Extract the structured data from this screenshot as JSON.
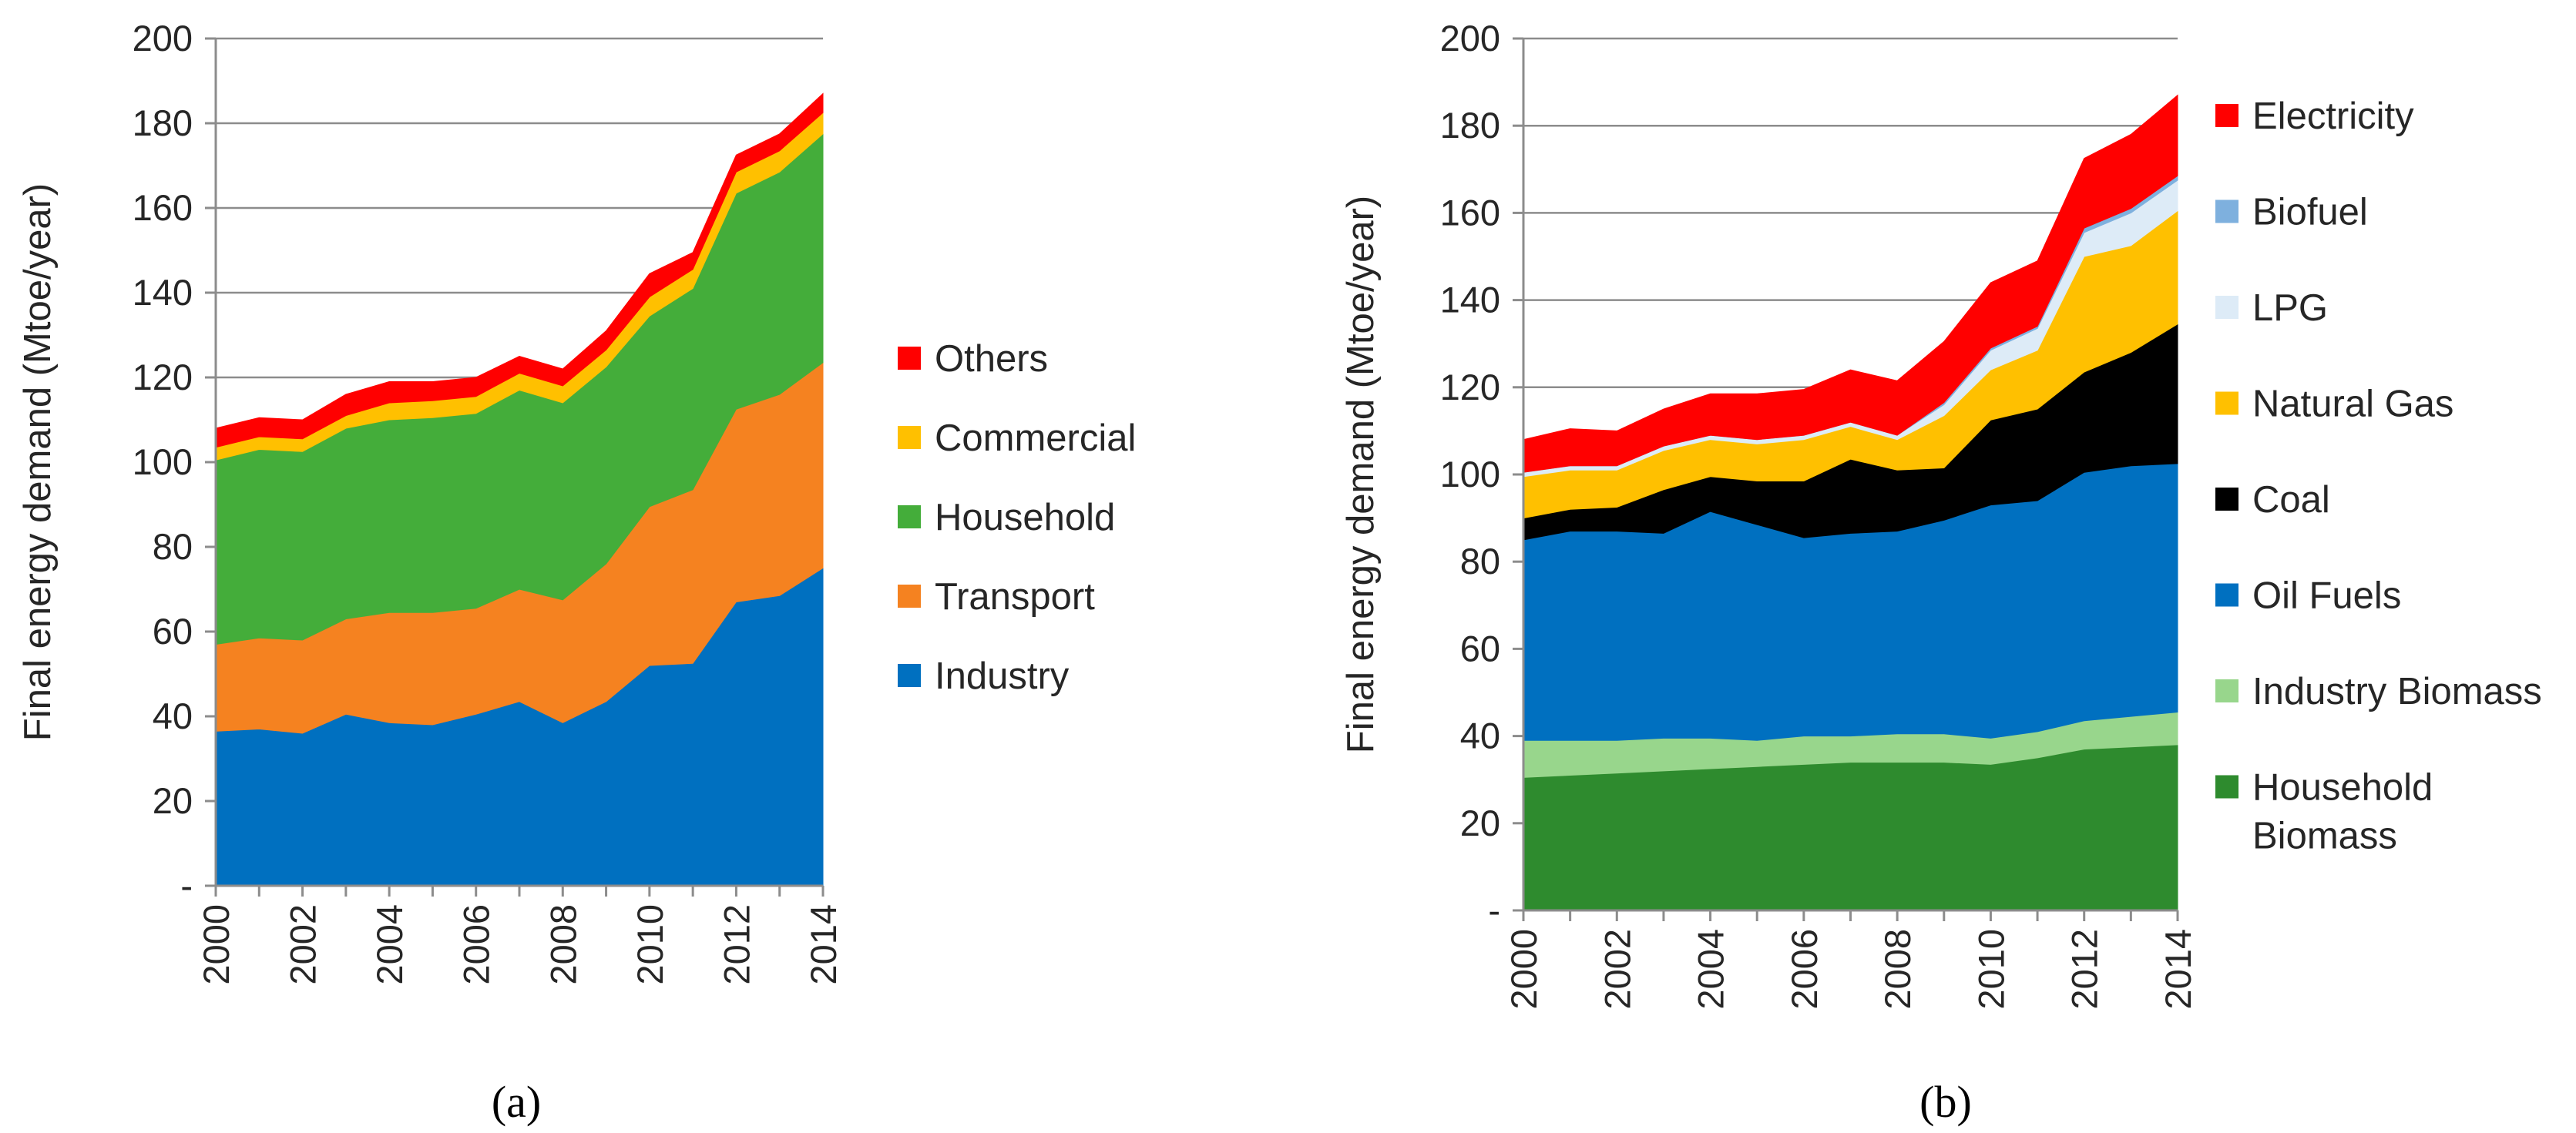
{
  "chart_data": [
    {
      "type": "area",
      "stacked": true,
      "panel_label": "(a)",
      "title": "",
      "xlabel": "",
      "ylabel": "Final energy demand (Mtoe/year)",
      "x": [
        2000,
        2001,
        2002,
        2003,
        2004,
        2005,
        2006,
        2007,
        2008,
        2009,
        2010,
        2011,
        2012,
        2013,
        2014
      ],
      "x_tick_labels": [
        "2000",
        "2002",
        "2004",
        "2006",
        "2008",
        "2010",
        "2012",
        "2014"
      ],
      "ylim": [
        0,
        200
      ],
      "y_tick_labels": [
        "-",
        "20",
        "40",
        "60",
        "80",
        "100",
        "120",
        "140",
        "160",
        "180",
        "200"
      ],
      "grid": true,
      "legend_position": "right",
      "series": [
        {
          "name": "Industry",
          "color": "#0070C0",
          "values": [
            36.5,
            37,
            36,
            40.5,
            38.5,
            38,
            40.5,
            43.5,
            38.5,
            43.5,
            52,
            52.5,
            67,
            68.5,
            75
          ]
        },
        {
          "name": "Transport",
          "color": "#F58220",
          "values": [
            20.5,
            21.5,
            22,
            22.5,
            26,
            26.5,
            25,
            26.5,
            29,
            32.5,
            37.5,
            41,
            45.5,
            47.5,
            48.5
          ]
        },
        {
          "name": "Household",
          "color": "#44AD3A",
          "values": [
            43.5,
            44.5,
            44.5,
            45,
            45.5,
            46,
            46,
            47,
            46.5,
            46.5,
            45,
            47.5,
            51,
            52.5,
            54
          ]
        },
        {
          "name": "Commercial",
          "color": "#FFC000",
          "values": [
            3,
            3,
            3,
            3,
            4,
            4,
            4,
            4,
            4,
            4,
            4.5,
            4.5,
            5,
            5,
            5
          ]
        },
        {
          "name": "Others",
          "color": "#FF0000",
          "values": [
            4.5,
            4.5,
            4.5,
            5,
            5,
            4.5,
            4.5,
            4,
            4,
            4.5,
            5.5,
            4,
            4,
            4,
            4.5
          ]
        }
      ],
      "legend_order": [
        "Others",
        "Commercial",
        "Household",
        "Transport",
        "Industry"
      ]
    },
    {
      "type": "area",
      "stacked": true,
      "panel_label": "(b)",
      "title": "",
      "xlabel": "",
      "ylabel": "Final energy demand (Mtoe/year)",
      "x": [
        2000,
        2001,
        2002,
        2003,
        2004,
        2005,
        2006,
        2007,
        2008,
        2009,
        2010,
        2011,
        2012,
        2013,
        2014
      ],
      "x_tick_labels": [
        "2000",
        "2002",
        "2004",
        "2006",
        "2008",
        "2010",
        "2012",
        "2014"
      ],
      "ylim": [
        0,
        200
      ],
      "y_tick_labels": [
        "-",
        "20",
        "40",
        "60",
        "80",
        "100",
        "120",
        "140",
        "160",
        "180",
        "200"
      ],
      "grid": true,
      "legend_position": "right",
      "series": [
        {
          "name": "Household Biomass",
          "legend_lines": [
            "Household",
            "Biomass"
          ],
          "color": "#2E8B2E",
          "values": [
            30.5,
            31,
            31.5,
            32,
            32.5,
            33,
            33.5,
            34,
            34,
            34,
            33.5,
            35,
            37,
            37.5,
            38
          ]
        },
        {
          "name": "Industry Biomass",
          "legend_lines": [
            "Industry Biomass"
          ],
          "color": "#98D68C",
          "values": [
            8.5,
            8,
            7.5,
            7.5,
            7,
            6,
            6.5,
            6,
            6.5,
            6.5,
            6,
            6,
            6.5,
            7,
            7.5
          ]
        },
        {
          "name": "Oil Fuels",
          "legend_lines": [
            "Oil Fuels"
          ],
          "color": "#0070C0",
          "values": [
            46,
            48,
            48,
            47,
            52,
            49.5,
            45.5,
            46.5,
            46.5,
            49,
            53.5,
            53,
            57,
            57.5,
            57
          ]
        },
        {
          "name": "Coal",
          "legend_lines": [
            "Coal"
          ],
          "color": "#000000",
          "values": [
            5,
            5,
            5.5,
            10,
            8,
            10,
            13,
            17,
            14,
            12,
            19.5,
            21,
            23,
            26,
            32
          ]
        },
        {
          "name": "Natural Gas",
          "legend_lines": [
            "Natural Gas"
          ],
          "color": "#FFC000",
          "values": [
            9.5,
            9,
            8.5,
            9,
            8.5,
            8.5,
            9.5,
            7.5,
            7,
            12,
            11.5,
            13.5,
            26.5,
            24.5,
            26
          ]
        },
        {
          "name": "LPG",
          "legend_lines": [
            "LPG"
          ],
          "color": "#DDEBF7",
          "values": [
            1,
            1,
            1,
            1,
            1,
            1,
            1,
            1,
            1,
            2.5,
            4.5,
            5,
            5.5,
            7.5,
            7
          ]
        },
        {
          "name": "Biofuel",
          "legend_lines": [
            "Biofuel"
          ],
          "color": "#7EB0DE",
          "values": [
            0,
            0,
            0,
            0,
            0,
            0,
            0,
            0,
            0,
            0.5,
            0.5,
            0.5,
            1,
            1,
            1
          ]
        },
        {
          "name": "Electricity",
          "legend_lines": [
            "Electricity"
          ],
          "color": "#FF0000",
          "values": [
            7.5,
            8.5,
            8,
            8.5,
            9.5,
            10.5,
            10.5,
            12,
            12.5,
            14,
            15,
            15,
            16,
            17,
            18.5
          ]
        }
      ],
      "legend_order": [
        "Electricity",
        "Biofuel",
        "LPG",
        "Natural Gas",
        "Coal",
        "Oil Fuels",
        "Industry Biomass",
        "Household Biomass"
      ]
    }
  ]
}
